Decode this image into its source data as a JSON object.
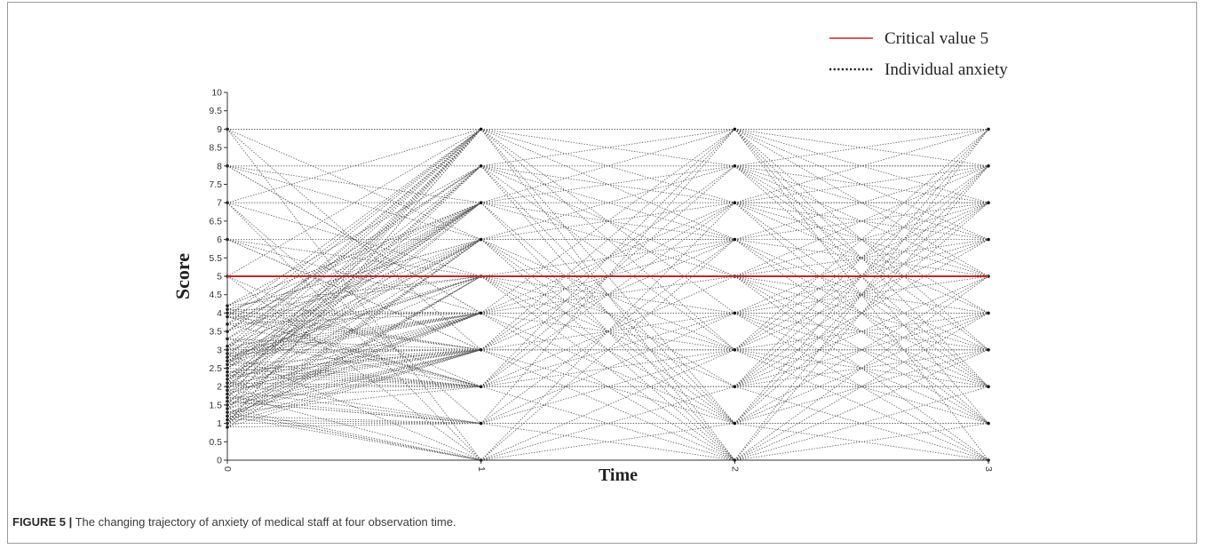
{
  "figure": {
    "label": "FIGURE 5 |",
    "caption": "The changing trajectory of anxiety of medical staff at four observation time."
  },
  "chart_data": {
    "type": "line",
    "xlabel": "Time",
    "ylabel": "Score",
    "x_ticks": [
      "0",
      "1",
      "2",
      "3"
    ],
    "y_ticks": [
      "0",
      "0.5",
      "1",
      "1.5",
      "2",
      "2.5",
      "3",
      "3.5",
      "4",
      "4.5",
      "5",
      "5.5",
      "6",
      "6.5",
      "7",
      "7.5",
      "8",
      "8.5",
      "9",
      "9.5",
      "10"
    ],
    "xlim": [
      0,
      3
    ],
    "ylim": [
      0,
      10
    ],
    "legend": {
      "position": "top-right",
      "entries": [
        {
          "label": "Critical value 5",
          "style": "solid",
          "color": "#c0262d"
        },
        {
          "label": "Individual anxiety",
          "style": "dotted",
          "color": "#222222"
        }
      ]
    },
    "reference_line": {
      "name": "Critical value 5",
      "y": 5,
      "color": "#c0262d"
    },
    "individual_color": "#555555",
    "score_levels": {
      "time_0": [
        0.9,
        1.0,
        1.1,
        1.2,
        1.3,
        1.4,
        1.5,
        1.6,
        1.7,
        1.8,
        1.9,
        2.0,
        2.1,
        2.2,
        2.3,
        2.4,
        2.5,
        2.6,
        2.7,
        2.8,
        2.9,
        3.0,
        3.1,
        3.3,
        3.5,
        3.7,
        3.9,
        4.0,
        4.1,
        4.2,
        5.0,
        6.0,
        7.0,
        8.0,
        9.0
      ],
      "time_1": [
        0,
        1,
        2,
        3,
        4,
        5,
        6,
        7,
        8,
        9
      ],
      "time_2": [
        0,
        1,
        2,
        3,
        4,
        5,
        6,
        7,
        8,
        9
      ],
      "time_3": [
        0,
        1,
        2,
        3,
        4,
        5,
        6,
        7,
        8,
        9
      ]
    },
    "grid": false
  }
}
